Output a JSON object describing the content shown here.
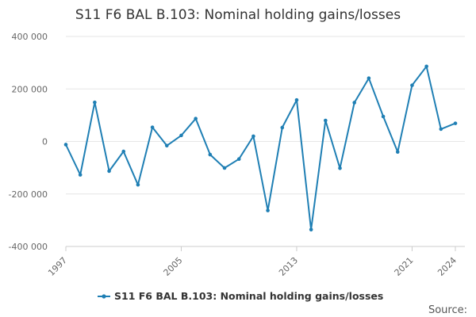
{
  "chart_data": {
    "type": "line",
    "title": "S11 F6 BAL B.103: Nominal holding gains/losses",
    "xlabel": "",
    "ylabel": "",
    "series": [
      {
        "name": "S11 F6 BAL B.103: Nominal holding gains/losses",
        "color": "#1f7fb4",
        "points": [
          {
            "x": 1997,
            "y": -12000
          },
          {
            "x": 1998,
            "y": -127000
          },
          {
            "x": 1999,
            "y": 149000
          },
          {
            "x": 2000,
            "y": -113000
          },
          {
            "x": 2001,
            "y": -38000
          },
          {
            "x": 2002,
            "y": -165000
          },
          {
            "x": 2003,
            "y": 54000
          },
          {
            "x": 2004,
            "y": -16000
          },
          {
            "x": 2005,
            "y": 23000
          },
          {
            "x": 2006,
            "y": 87000
          },
          {
            "x": 2007,
            "y": -50000
          },
          {
            "x": 2008,
            "y": -101000
          },
          {
            "x": 2009,
            "y": -67000
          },
          {
            "x": 2010,
            "y": 20000
          },
          {
            "x": 2011,
            "y": -263000
          },
          {
            "x": 2012,
            "y": 53000
          },
          {
            "x": 2013,
            "y": 158000
          },
          {
            "x": 2014,
            "y": -336000
          },
          {
            "x": 2015,
            "y": 80000
          },
          {
            "x": 2016,
            "y": -102000
          },
          {
            "x": 2017,
            "y": 148000
          },
          {
            "x": 2018,
            "y": 241000
          },
          {
            "x": 2019,
            "y": 95000
          },
          {
            "x": 2020,
            "y": -40000
          },
          {
            "x": 2021,
            "y": 214000
          },
          {
            "x": 2022,
            "y": 286000
          },
          {
            "x": 2023,
            "y": 47000
          },
          {
            "x": 2024,
            "y": 69000
          }
        ]
      }
    ],
    "x_ticks": [
      "1997",
      "2005",
      "2013",
      "2021",
      "2024"
    ],
    "y_ticks": [
      {
        "value": 400000,
        "label": "400 000"
      },
      {
        "value": 200000,
        "label": "200 000"
      },
      {
        "value": 0,
        "label": "0"
      },
      {
        "value": -200000,
        "label": "-200 000"
      },
      {
        "value": -400000,
        "label": "-400 000"
      }
    ],
    "xlim": [
      1997,
      2024
    ],
    "ylim": [
      -400000,
      400000
    ],
    "grid": true,
    "legend": {
      "position": "bottom-center"
    },
    "source_label": "Source:"
  }
}
